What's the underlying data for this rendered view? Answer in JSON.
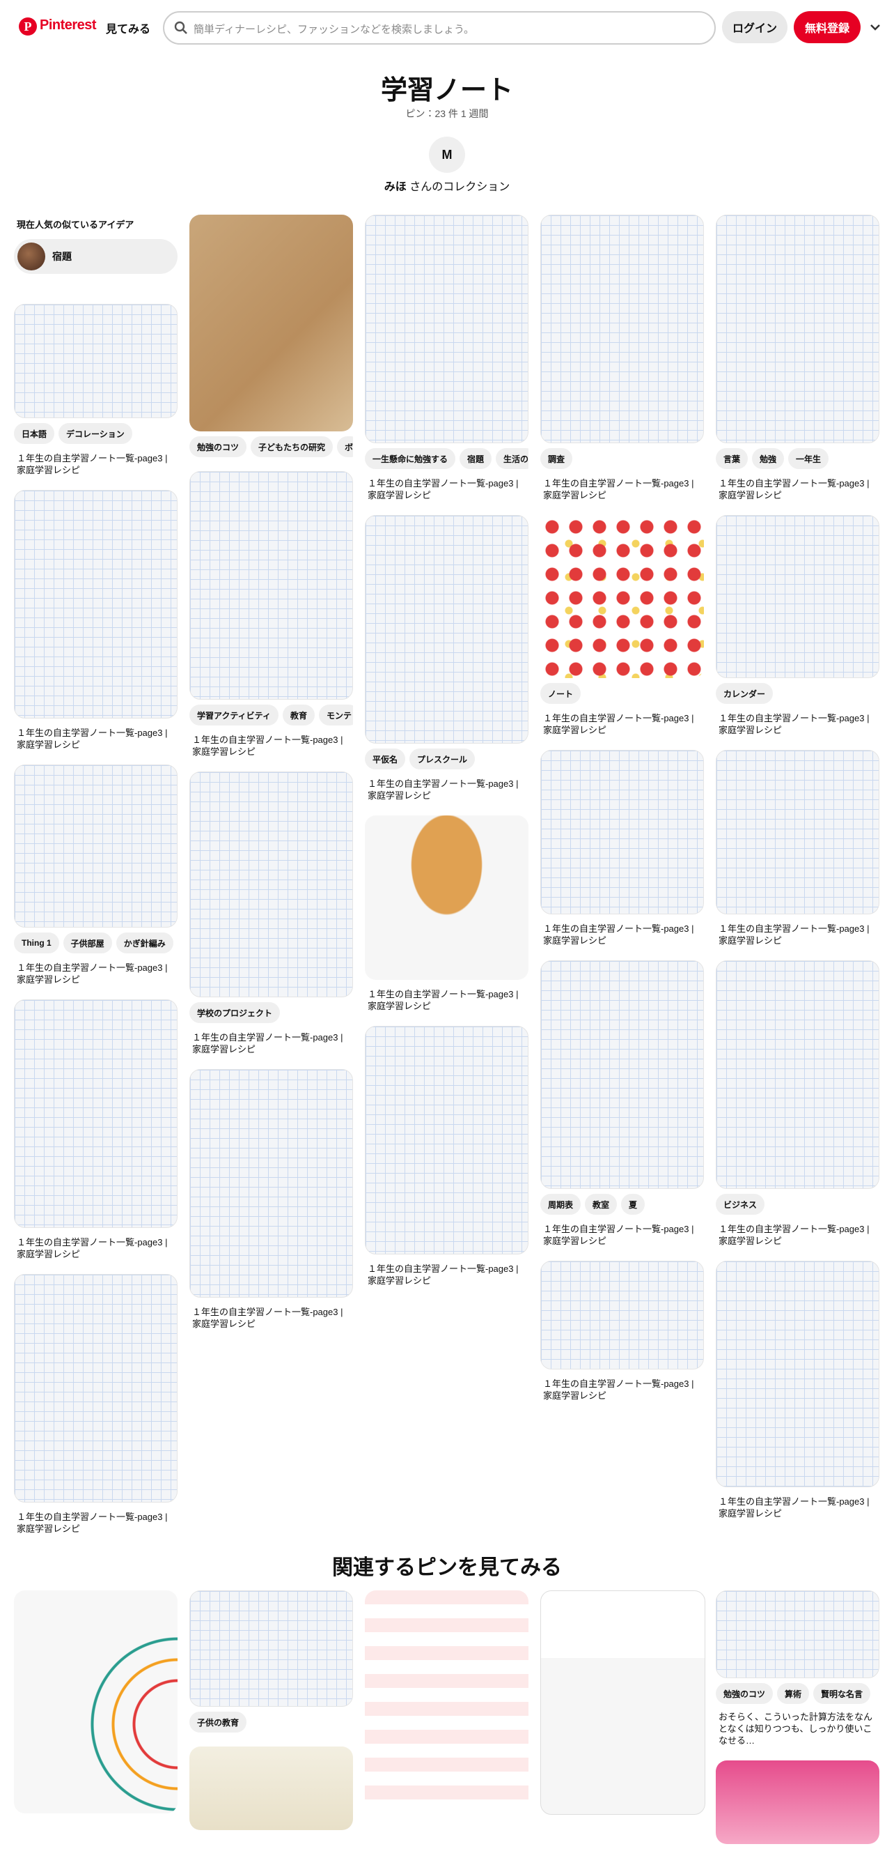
{
  "header": {
    "logo": "Pinterest",
    "explore": "見てみる",
    "search_placeholder": "簡単ディナーレシピ、ファッションなどを検索しましょう。",
    "login": "ログイン",
    "signup": "無料登録"
  },
  "board": {
    "title": "学習ノート",
    "pin_count": "ピン：23 件",
    "updated": "1 週間",
    "avatar": "M",
    "owner": "みほ",
    "owner_suffix": "さんのコレクション"
  },
  "sidebar": {
    "heading": "現在人気の似ているアイデア",
    "chip": "宿題"
  },
  "pin_columns": [
    [
      {
        "tags": [
          "日本語",
          "デコレーション"
        ],
        "title": "１年生の自主学習ノート一覧-page3 | 家庭学習レシピ"
      },
      {
        "title": "１年生の自主学習ノート一覧-page3 | 家庭学習レシピ"
      },
      {
        "tags": [
          "Thing 1",
          "子供部屋",
          "かぎ針編み"
        ],
        "title": "１年生の自主学習ノート一覧-page3 | 家庭学習レシピ"
      },
      {
        "title": "１年生の自主学習ノート一覧-page3 | 家庭学習レシピ"
      },
      {
        "title": "１年生の自主学習ノート一覧-page3 | 家庭学習レシピ"
      }
    ],
    [
      {
        "tags": [
          "勉強のコツ",
          "子どもたちの研究",
          "ボ"
        ]
      },
      {
        "tags": [
          "学習アクティビティ",
          "教育",
          "モンテ"
        ],
        "title": "１年生の自主学習ノート一覧-page3 | 家庭学習レシピ"
      },
      {
        "tags": [
          "学校のプロジェクト"
        ],
        "title": "１年生の自主学習ノート一覧-page3 | 家庭学習レシピ"
      },
      {
        "title": "１年生の自主学習ノート一覧-page3 | 家庭学習レシピ"
      }
    ],
    [
      {
        "tags": [
          "一生懸命に勉強する",
          "宿題",
          "生活の"
        ],
        "title": "１年生の自主学習ノート一覧-page3 | 家庭学習レシピ"
      },
      {
        "tags": [
          "平仮名",
          "プレスクール"
        ],
        "title": "１年生の自主学習ノート一覧-page3 | 家庭学習レシピ"
      },
      {
        "title": "１年生の自主学習ノート一覧-page3 | 家庭学習レシピ"
      },
      {
        "title": "１年生の自主学習ノート一覧-page3 | 家庭学習レシピ"
      }
    ],
    [
      {
        "tags": [
          "調査"
        ],
        "title": "１年生の自主学習ノート一覧-page3 | 家庭学習レシピ"
      },
      {
        "tags": [
          "ノート"
        ],
        "title": "１年生の自主学習ノート一覧-page3 | 家庭学習レシピ"
      },
      {
        "title": "１年生の自主学習ノート一覧-page3 | 家庭学習レシピ"
      },
      {
        "tags": [
          "周期表",
          "教室",
          "夏"
        ],
        "title": "１年生の自主学習ノート一覧-page3 | 家庭学習レシピ"
      },
      {
        "title": "１年生の自主学習ノート一覧-page3 | 家庭学習レシピ"
      }
    ],
    [
      {
        "tags": [
          "言葉",
          "勉強",
          "一年生"
        ],
        "title": "１年生の自主学習ノート一覧-page3 | 家庭学習レシピ"
      },
      {
        "tags": [
          "カレンダー"
        ],
        "title": "１年生の自主学習ノート一覧-page3 | 家庭学習レシピ"
      },
      {
        "title": "１年生の自主学習ノート一覧-page3 | 家庭学習レシピ"
      },
      {
        "tags": [
          "ビジネス"
        ],
        "title": "１年生の自主学習ノート一覧-page3 | 家庭学習レシピ"
      },
      {
        "title": "１年生の自主学習ノート一覧-page3 | 家庭学習レシピ"
      }
    ]
  ],
  "related": {
    "heading": "関連するピンを見てみる",
    "pins": [
      {
        "tags": [
          "子供の教育"
        ]
      },
      {
        "tags": [
          "勉強のコツ",
          "算術",
          "賢明な名言"
        ],
        "description": "おそらく、こういった計算方法をなんとなくは知りつつも、しっかり使いこなせる…"
      }
    ]
  }
}
